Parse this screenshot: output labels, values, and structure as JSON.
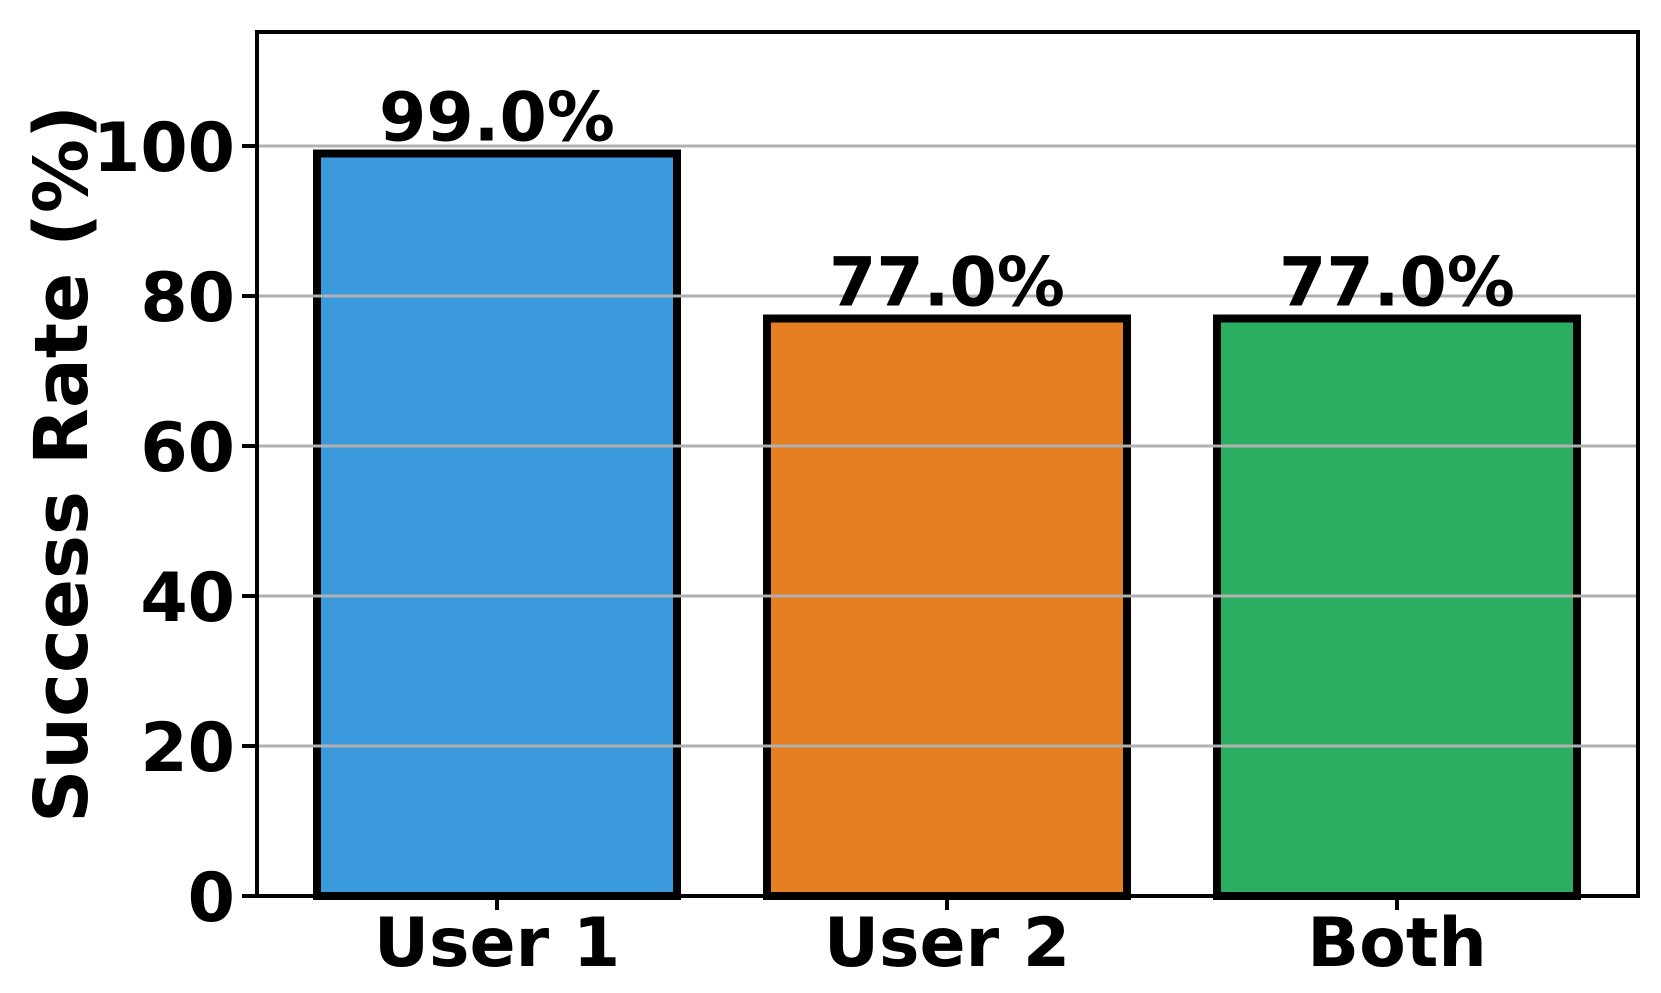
{
  "figure": {
    "background": "#ffffff"
  },
  "chart_data": {
    "type": "bar",
    "title": "",
    "xlabel": "",
    "ylabel": "Success Rate (%)",
    "categories": [
      "User 1",
      "User 2",
      "Both"
    ],
    "values": [
      99.0,
      77.0,
      77.0
    ],
    "bar_labels": [
      "99.0%",
      "77.0%",
      "77.0%"
    ],
    "bar_colors": [
      "#3A99DB",
      "#E67E22",
      "#2BAE61"
    ],
    "bar_edge_color": "#000000",
    "ylim": [
      0,
      115.2
    ],
    "yticks": [
      0,
      20,
      40,
      60,
      80,
      100
    ],
    "grid": true,
    "grid_on_top_of_bars": true,
    "grid_color": "#b0b0b0",
    "axis_color": "#000000",
    "text_color": "#000000",
    "legend": null
  }
}
